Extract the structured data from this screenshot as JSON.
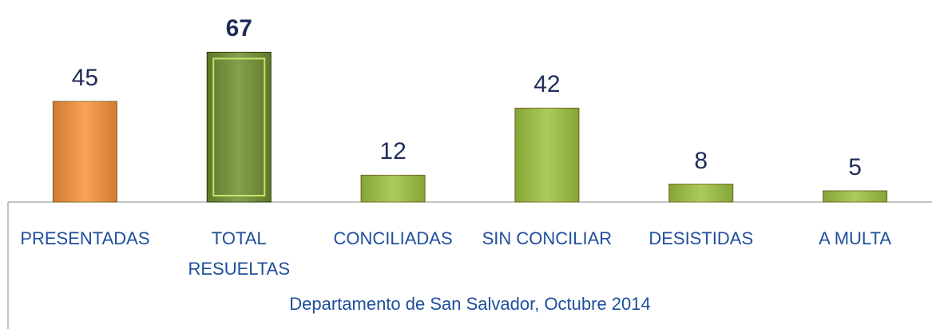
{
  "chart_data": {
    "type": "bar",
    "categories": [
      "PRESENTADAS",
      "TOTAL RESUELTAS",
      "CONCILIADAS",
      "SIN CONCILIAR",
      "DESISTIDAS",
      "A MULTA"
    ],
    "values": [
      45,
      67,
      12,
      42,
      8,
      5
    ],
    "colors": [
      "#f7923a",
      "#6f8f2e",
      "#9cc23f",
      "#9cc23f",
      "#9cc23f",
      "#9cc23f"
    ],
    "emphasis": [
      false,
      true,
      false,
      false,
      false,
      false
    ],
    "xlabel": "Departamento de San Salvador, Octubre 2014"
  }
}
